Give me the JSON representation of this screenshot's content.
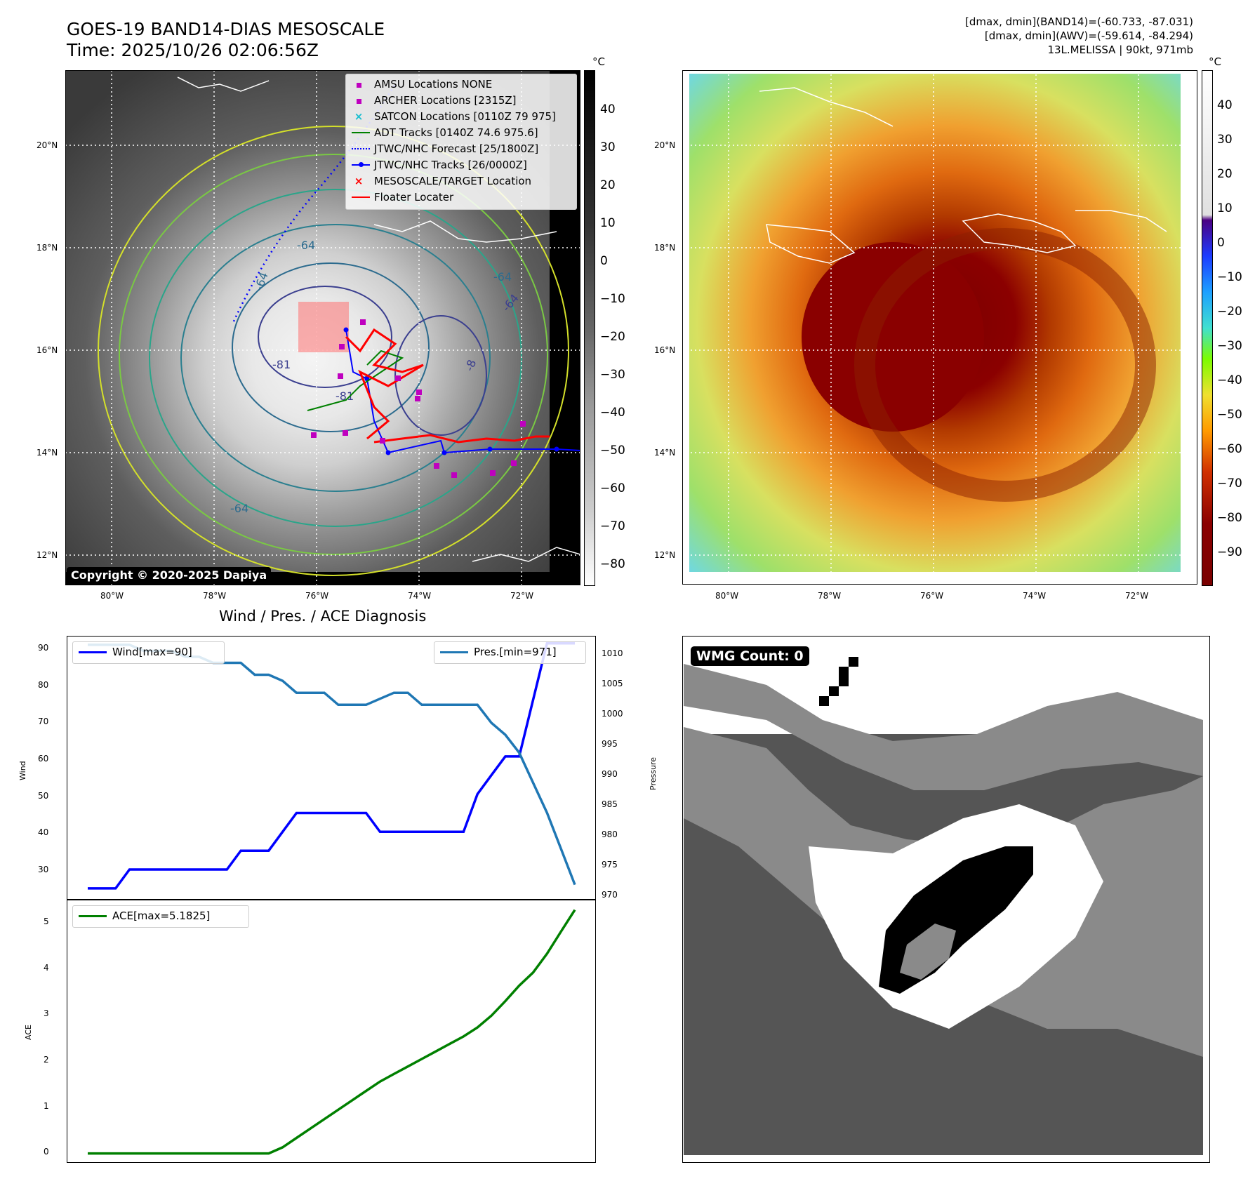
{
  "header": {
    "title_line1": "GOES-19 BAND14-DIAS MESOSCALE",
    "title_line2": "Time: 2025/10/26 02:06:56Z",
    "info_line1": "[dmax, dmin](BAND14)=(-60.733, -87.031)",
    "info_line2": "[dmax, dmin](AWV)=(-59.614, -84.294)",
    "info_line3": "13L.MELISSA | 90kt, 971mb"
  },
  "map": {
    "lat_labels": [
      "20°N",
      "18°N",
      "16°N",
      "14°N",
      "12°N"
    ],
    "lon_labels": [
      "80°W",
      "78°W",
      "76°W",
      "74°W",
      "72°W"
    ],
    "copyright": "Copyright © 2020-2025 Dapiya",
    "contour_labels": [
      "-64",
      "-64",
      "-64",
      "-81",
      "-81",
      "-64",
      "-8",
      "-64"
    ],
    "colorbar_unit": "°C",
    "colorbar_gray_ticks": [
      "40",
      "30",
      "20",
      "10",
      "0",
      "−10",
      "−20",
      "−30",
      "−40",
      "−50",
      "−60",
      "−70",
      "−80"
    ],
    "colorbar_color_ticks": [
      "40",
      "30",
      "20",
      "10",
      "0",
      "−10",
      "−20",
      "−30",
      "−40",
      "−50",
      "−60",
      "−70",
      "−80",
      "−90"
    ],
    "legend": [
      {
        "label": "AMSU Locations NONE",
        "color": "#bf00bf",
        "marker": "square"
      },
      {
        "label": "ARCHER Locations [2315Z]",
        "color": "#bf00bf",
        "marker": "square"
      },
      {
        "label": "SATCON Locations [0110Z 79 975]",
        "color": "#17becf",
        "marker": "x"
      },
      {
        "label": "ADT Tracks [0140Z 74.6 975.6]",
        "color": "#008000",
        "marker": "line"
      },
      {
        "label": "JTWC/NHC Forecast [25/1800Z]",
        "color": "#0000ff",
        "marker": "dotted"
      },
      {
        "label": "JTWC/NHC Tracks [26/0000Z]",
        "color": "#0000ff",
        "marker": "line-dot"
      },
      {
        "label": "MESOSCALE/TARGET Location",
        "color": "#ff0000",
        "marker": "x"
      },
      {
        "label": "Floater Locater",
        "color": "#ff0000",
        "marker": "line"
      }
    ]
  },
  "wmg": {
    "label": "WMG Count: 0"
  },
  "chart_data": [
    {
      "type": "line",
      "title": "Wind / Pres. / ACE Diagnosis",
      "x": [
        0,
        1,
        2,
        3,
        4,
        5,
        6,
        7,
        8,
        9,
        10,
        11,
        12,
        13,
        14,
        15,
        16,
        17,
        18,
        19,
        20,
        21,
        22,
        23,
        24,
        25,
        26,
        27,
        28,
        29,
        30,
        31,
        32,
        33,
        34,
        35
      ],
      "series": [
        {
          "name": "Wind[max=90]",
          "axis": "left",
          "color": "#0000ff",
          "values": [
            25,
            25,
            25,
            30,
            30,
            30,
            30,
            30,
            30,
            30,
            30,
            35,
            35,
            35,
            40,
            45,
            45,
            45,
            45,
            45,
            45,
            40,
            40,
            40,
            40,
            40,
            40,
            40,
            50,
            55,
            60,
            60,
            75,
            90,
            90,
            90
          ]
        },
        {
          "name": "Pres.[min=971]",
          "axis": "right",
          "color": "#1f77b4",
          "values": [
            1011,
            1011,
            1011,
            1011,
            1010,
            1010,
            1010,
            1009,
            1009,
            1008,
            1008,
            1008,
            1006,
            1006,
            1005,
            1003,
            1003,
            1003,
            1001,
            1001,
            1001,
            1002,
            1003,
            1003,
            1001,
            1001,
            1001,
            1001,
            1001,
            998,
            996,
            993,
            988,
            983,
            977,
            971
          ]
        }
      ],
      "ylabel": "Wind",
      "y2label": "Pressure",
      "ylim": [
        22,
        92
      ],
      "y2lim": [
        968.5,
        1012.5
      ],
      "yticks": [
        "90",
        "80",
        "70",
        "60",
        "50",
        "40",
        "30"
      ],
      "y2ticks": [
        "1010",
        "1005",
        "1000",
        "995",
        "990",
        "985",
        "980",
        "975",
        "970"
      ]
    },
    {
      "type": "line",
      "x": [
        0,
        1,
        2,
        3,
        4,
        5,
        6,
        7,
        8,
        9,
        10,
        11,
        12,
        13,
        14,
        15,
        16,
        17,
        18,
        19,
        20,
        21,
        22,
        23,
        24,
        25,
        26,
        27,
        28,
        29,
        30,
        31,
        32,
        33,
        34,
        35
      ],
      "series": [
        {
          "name": "ACE[max=5.1825]",
          "color": "#008000",
          "values": [
            0,
            0,
            0,
            0,
            0,
            0,
            0,
            0,
            0,
            0,
            0,
            0,
            0,
            0,
            0.13,
            0.33,
            0.53,
            0.73,
            0.93,
            1.13,
            1.33,
            1.53,
            1.69,
            1.85,
            2.01,
            2.17,
            2.33,
            2.49,
            2.68,
            2.93,
            3.24,
            3.57,
            3.85,
            4.25,
            4.72,
            5.1825
          ]
        }
      ],
      "ylabel": "ACE",
      "ylim": [
        -0.2,
        5.4
      ],
      "yticks": [
        "5",
        "4",
        "3",
        "2",
        "1",
        "0"
      ]
    }
  ]
}
